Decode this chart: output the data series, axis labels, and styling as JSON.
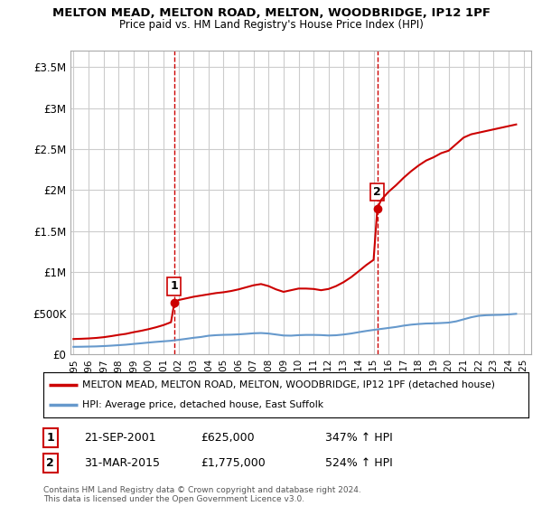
{
  "title": "MELTON MEAD, MELTON ROAD, MELTON, WOODBRIDGE, IP12 1PF",
  "subtitle": "Price paid vs. HM Land Registry's House Price Index (HPI)",
  "legend_line1": "MELTON MEAD, MELTON ROAD, MELTON, WOODBRIDGE, IP12 1PF (detached house)",
  "legend_line2": "HPI: Average price, detached house, East Suffolk",
  "footnote": "Contains HM Land Registry data © Crown copyright and database right 2024.\nThis data is licensed under the Open Government Licence v3.0.",
  "sale1_date": "21-SEP-2001",
  "sale1_price": 625000,
  "sale1_label": "347% ↑ HPI",
  "sale2_date": "31-MAR-2015",
  "sale2_price": 1775000,
  "sale2_label": "524% ↑ HPI",
  "sale1_year": 2001.72,
  "sale2_year": 2015.25,
  "ylim": [
    0,
    3700000
  ],
  "yticks": [
    0,
    500000,
    1000000,
    1500000,
    2000000,
    2500000,
    3000000,
    3500000
  ],
  "ytick_labels": [
    "£0",
    "£500K",
    "£1M",
    "£1.5M",
    "£2M",
    "£2.5M",
    "£3M",
    "£3.5M"
  ],
  "xlim": [
    1994.8,
    2025.5
  ],
  "background_color": "#ffffff",
  "grid_color": "#cccccc",
  "red_color": "#cc0000",
  "blue_color": "#6699cc",
  "hpi_years": [
    1995,
    1995.5,
    1996,
    1996.5,
    1997,
    1997.5,
    1998,
    1998.5,
    1999,
    1999.5,
    2000,
    2000.5,
    2001,
    2001.5,
    2002,
    2002.5,
    2003,
    2003.5,
    2004,
    2004.5,
    2005,
    2005.5,
    2006,
    2006.5,
    2007,
    2007.5,
    2008,
    2008.5,
    2009,
    2009.5,
    2010,
    2010.5,
    2011,
    2011.5,
    2012,
    2012.5,
    2013,
    2013.5,
    2014,
    2014.5,
    2015,
    2015.5,
    2016,
    2016.5,
    2017,
    2017.5,
    2018,
    2018.5,
    2019,
    2019.5,
    2020,
    2020.5,
    2021,
    2021.5,
    2022,
    2022.5,
    2023,
    2023.5,
    2024,
    2024.5
  ],
  "hpi_values": [
    90000,
    91000,
    93000,
    95000,
    99000,
    104000,
    110000,
    116000,
    125000,
    133000,
    142000,
    150000,
    157000,
    164000,
    175000,
    187000,
    200000,
    210000,
    225000,
    232000,
    236000,
    238000,
    242000,
    248000,
    255000,
    258000,
    252000,
    240000,
    228000,
    226000,
    232000,
    235000,
    235000,
    233000,
    228000,
    231000,
    240000,
    252000,
    268000,
    283000,
    296000,
    308000,
    320000,
    332000,
    348000,
    360000,
    368000,
    374000,
    376000,
    380000,
    385000,
    400000,
    425000,
    450000,
    468000,
    475000,
    478000,
    480000,
    485000,
    492000
  ],
  "red_years": [
    1995,
    1995.5,
    1996,
    1996.5,
    1997,
    1997.5,
    1998,
    1998.5,
    1999,
    1999.5,
    2000,
    2000.5,
    2001,
    2001.5,
    2001.72,
    2002,
    2002.5,
    2003,
    2003.5,
    2004,
    2004.5,
    2005,
    2005.5,
    2006,
    2006.5,
    2007,
    2007.5,
    2008,
    2008.5,
    2009,
    2009.5,
    2010,
    2010.5,
    2011,
    2011.5,
    2012,
    2012.5,
    2013,
    2013.5,
    2014,
    2014.5,
    2015,
    2015.25,
    2015.5,
    2016,
    2016.5,
    2017,
    2017.5,
    2018,
    2018.5,
    2019,
    2019.5,
    2020,
    2020.5,
    2021,
    2021.5,
    2022,
    2022.5,
    2023,
    2023.5,
    2024,
    2024.5
  ],
  "red_values": [
    185000,
    188000,
    192000,
    198000,
    207000,
    220000,
    235000,
    248000,
    268000,
    285000,
    305000,
    328000,
    355000,
    390000,
    625000,
    660000,
    680000,
    700000,
    715000,
    730000,
    745000,
    755000,
    770000,
    790000,
    815000,
    840000,
    855000,
    830000,
    790000,
    760000,
    780000,
    800000,
    800000,
    795000,
    780000,
    795000,
    830000,
    878000,
    938000,
    1010000,
    1085000,
    1150000,
    1775000,
    1880000,
    1980000,
    2060000,
    2150000,
    2230000,
    2300000,
    2360000,
    2400000,
    2450000,
    2480000,
    2560000,
    2640000,
    2680000,
    2700000,
    2720000,
    2740000,
    2760000,
    2780000,
    2800000
  ]
}
